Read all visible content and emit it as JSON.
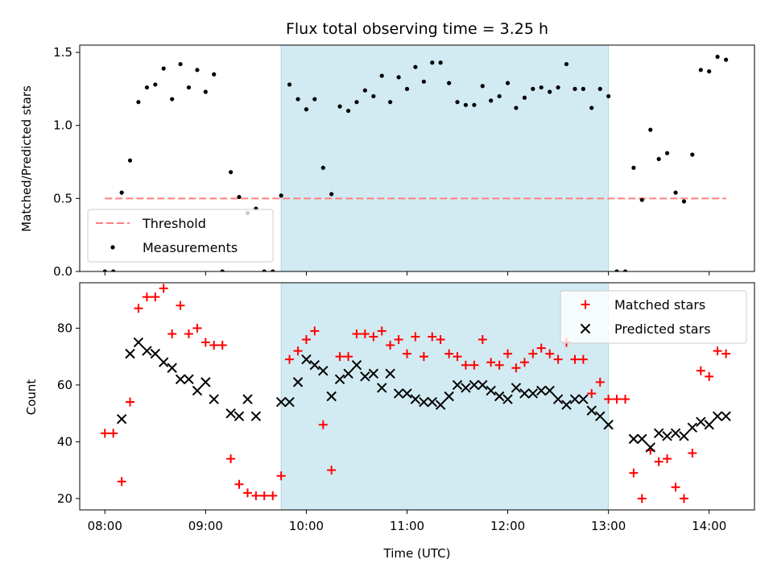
{
  "title": "Flux total observing time = 3.25 h",
  "colors": {
    "span": "#add8e6",
    "threshold": "#ff7f7f",
    "measurement": "#000000",
    "matched": "#ff0000",
    "predicted": "#000000"
  },
  "chart_data": [
    {
      "type": "scatter",
      "panel": "top",
      "ylabel": "Matched/Predicted stars",
      "xlabel": "",
      "xlim": [
        7.75,
        14.45
      ],
      "ylim": [
        0,
        1.55
      ],
      "yticks": [
        0.0,
        0.5,
        1.0,
        1.5
      ],
      "ytick_labels": [
        "0.0",
        "0.5",
        "1.0",
        "1.5"
      ],
      "xticks": [
        8,
        9,
        10,
        11,
        12,
        13,
        14
      ],
      "grid": false,
      "legend": {
        "placement": "lower-left",
        "entries": [
          "Threshold",
          "Measurements"
        ]
      },
      "shaded_span": {
        "x": [
          9.75,
          13.0
        ]
      },
      "threshold": {
        "name": "Threshold",
        "value": 0.5,
        "x": [
          8.0,
          14.17
        ]
      },
      "series": [
        {
          "name": "Measurements",
          "x": [
            8.0,
            8.083,
            8.167,
            8.25,
            8.333,
            8.417,
            8.5,
            8.583,
            8.667,
            8.75,
            8.833,
            8.917,
            9.0,
            9.083,
            9.167,
            9.25,
            9.333,
            9.417,
            9.5,
            9.583,
            9.667,
            9.75,
            9.833,
            9.917,
            10.0,
            10.083,
            10.167,
            10.25,
            10.333,
            10.417,
            10.5,
            10.583,
            10.667,
            10.75,
            10.833,
            10.917,
            11.0,
            11.083,
            11.167,
            11.25,
            11.333,
            11.417,
            11.5,
            11.583,
            11.667,
            11.75,
            11.833,
            11.917,
            12.0,
            12.083,
            12.167,
            12.25,
            12.333,
            12.417,
            12.5,
            12.583,
            12.667,
            12.75,
            12.833,
            12.917,
            13.0,
            13.083,
            13.167,
            13.25,
            13.333,
            13.417,
            13.5,
            13.583,
            13.667,
            13.75,
            13.833,
            13.917,
            14.0,
            14.083,
            14.167
          ],
          "y": [
            0.0,
            0.0,
            0.54,
            0.76,
            1.16,
            1.26,
            1.28,
            1.39,
            1.18,
            1.42,
            1.26,
            1.38,
            1.23,
            1.35,
            0.0,
            0.68,
            0.51,
            0.4,
            0.43,
            0.0,
            0.0,
            0.52,
            1.28,
            1.18,
            1.11,
            1.18,
            0.71,
            0.53,
            1.13,
            1.1,
            1.16,
            1.24,
            1.2,
            1.34,
            1.16,
            1.33,
            1.25,
            1.4,
            1.3,
            1.43,
            1.43,
            1.29,
            1.16,
            1.14,
            1.14,
            1.27,
            1.17,
            1.2,
            1.29,
            1.12,
            1.19,
            1.25,
            1.26,
            1.23,
            1.26,
            1.42,
            1.25,
            1.25,
            1.12,
            1.25,
            1.2,
            0.0,
            0.0,
            0.71,
            0.49,
            0.97,
            0.77,
            0.81,
            0.54,
            0.48,
            0.8,
            1.38,
            1.37,
            1.47,
            1.45
          ]
        }
      ]
    },
    {
      "type": "scatter",
      "panel": "bottom",
      "ylabel": "Count",
      "xlabel": "Time (UTC)",
      "xlim": [
        7.75,
        14.45
      ],
      "ylim": [
        16,
        96
      ],
      "yticks": [
        20,
        40,
        60,
        80
      ],
      "ytick_labels": [
        "20",
        "40",
        "60",
        "80"
      ],
      "xticks": [
        8,
        9,
        10,
        11,
        12,
        13,
        14
      ],
      "xtick_labels": [
        "08:00",
        "09:00",
        "10:00",
        "11:00",
        "12:00",
        "13:00",
        "14:00"
      ],
      "grid": false,
      "legend": {
        "placement": "upper-right",
        "entries": [
          "Matched stars",
          "Predicted stars"
        ]
      },
      "shaded_span": {
        "x": [
          9.75,
          13.0
        ]
      },
      "series": [
        {
          "name": "Matched stars",
          "marker": "plus",
          "x": [
            8.0,
            8.083,
            8.167,
            8.25,
            8.333,
            8.417,
            8.5,
            8.583,
            8.667,
            8.75,
            8.833,
            8.917,
            9.0,
            9.083,
            9.167,
            9.25,
            9.333,
            9.417,
            9.5,
            9.583,
            9.667,
            9.75,
            9.833,
            9.917,
            10.0,
            10.083,
            10.167,
            10.25,
            10.333,
            10.417,
            10.5,
            10.583,
            10.667,
            10.75,
            10.833,
            10.917,
            11.0,
            11.083,
            11.167,
            11.25,
            11.333,
            11.417,
            11.5,
            11.583,
            11.667,
            11.75,
            11.833,
            11.917,
            12.0,
            12.083,
            12.167,
            12.25,
            12.333,
            12.417,
            12.5,
            12.583,
            12.667,
            12.75,
            12.833,
            12.917,
            13.0,
            13.083,
            13.167,
            13.25,
            13.333,
            13.417,
            13.5,
            13.583,
            13.667,
            13.75,
            13.833,
            13.917,
            14.0,
            14.083,
            14.167
          ],
          "y": [
            43,
            43,
            26,
            54,
            87,
            91,
            91,
            94,
            78,
            88,
            78,
            80,
            75,
            74,
            74,
            34,
            25,
            22,
            21,
            21,
            21,
            28,
            69,
            72,
            76,
            79,
            46,
            30,
            70,
            70,
            78,
            78,
            77,
            79,
            74,
            76,
            71,
            77,
            70,
            77,
            76,
            71,
            70,
            67,
            67,
            76,
            68,
            67,
            71,
            66,
            68,
            71,
            73,
            71,
            69,
            75,
            69,
            69,
            57,
            61,
            55,
            55,
            55,
            29,
            20,
            37,
            33,
            34,
            24,
            20,
            36,
            65,
            63,
            72,
            71
          ]
        },
        {
          "name": "Predicted stars",
          "marker": "x",
          "x": [
            8.25,
            8.333,
            8.417,
            8.5,
            8.583,
            8.667,
            8.75,
            8.833,
            8.917,
            9.0,
            9.083,
            9.25,
            9.333,
            9.417,
            9.5,
            8.167,
            9.75,
            9.833,
            9.917,
            10.0,
            10.083,
            10.167,
            10.25,
            10.333,
            10.417,
            10.5,
            10.583,
            10.667,
            10.75,
            10.833,
            10.917,
            11.0,
            11.083,
            11.167,
            11.25,
            11.333,
            11.417,
            11.5,
            11.583,
            11.667,
            11.75,
            11.833,
            11.917,
            12.0,
            12.083,
            12.167,
            12.25,
            12.333,
            12.417,
            12.5,
            12.583,
            12.667,
            12.75,
            12.833,
            12.917,
            13.0,
            13.25,
            13.333,
            13.417,
            13.5,
            13.583,
            13.667,
            13.75,
            13.833,
            13.917,
            14.0,
            14.083,
            14.167
          ],
          "y": [
            71,
            75,
            72,
            71,
            68,
            66,
            62,
            62,
            58,
            61,
            55,
            50,
            49,
            55,
            49,
            48,
            54,
            54,
            61,
            69,
            67,
            65,
            56,
            62,
            64,
            67,
            63,
            64,
            59,
            64,
            57,
            57,
            55,
            54,
            54,
            53,
            56,
            60,
            59,
            60,
            60,
            58,
            56,
            55,
            59,
            57,
            57,
            58,
            58,
            55,
            53,
            55,
            55,
            51,
            49,
            46,
            41,
            41,
            38,
            43,
            42,
            43,
            42,
            45,
            47,
            46,
            49,
            49
          ]
        }
      ]
    }
  ]
}
